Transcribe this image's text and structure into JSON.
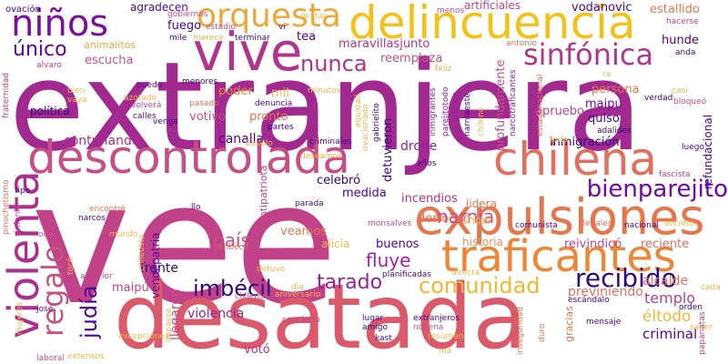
{
  "words": [
    {
      "text": "vee",
      "color": "#c2428a"
    },
    {
      "text": "extranjera",
      "color": "#a2298f"
    },
    {
      "text": "desatada",
      "color": "#da5a6b"
    },
    {
      "text": "delincuencia",
      "color": "#f0c21a"
    },
    {
      "text": "vive",
      "color": "#b1358c"
    },
    {
      "text": "descontrolada",
      "color": "#c64f86"
    },
    {
      "text": "expulsiones",
      "color": "#e6774d"
    },
    {
      "text": "traficantes",
      "color": "#ee8638"
    },
    {
      "text": "chilena",
      "color": "#e36f5d"
    },
    {
      "text": "violenta",
      "color": "#ab2f8e"
    },
    {
      "text": "niños",
      "color": "#7a0fa0"
    },
    {
      "text": "orquesta",
      "color": "#eea838"
    },
    {
      "text": "sinfónica",
      "color": "#b1358c"
    },
    {
      "text": "regalo",
      "color": "#ca5280"
    },
    {
      "text": "recibido",
      "color": "#30087e"
    },
    {
      "text": "bienparejito",
      "color": "#7206a7"
    },
    {
      "text": "comunidad",
      "color": "#f0b830"
    },
    {
      "text": "imbécil",
      "color": "#30087e"
    },
    {
      "text": "judía",
      "color": "#4c0296"
    },
    {
      "text": "nunca",
      "color": "#b43386"
    },
    {
      "text": "único",
      "color": "#6004a4"
    },
    {
      "text": "tarado",
      "color": "#9a1fa0"
    },
    {
      "text": "fluye",
      "color": "#a71fa0"
    },
    {
      "text": "narnia",
      "color": "#c64f86"
    },
    {
      "text": "éltodo",
      "color": "#f2b838"
    },
    {
      "text": "templo",
      "color": "#be3f88"
    },
    {
      "text": "criminal",
      "color": "#5a049b"
    },
    {
      "text": "alcalde",
      "color": "#e36f5d"
    },
    {
      "text": "previniendo",
      "color": "#e36f5d"
    },
    {
      "text": "país",
      "color": "#c64f86"
    },
    {
      "text": "violencia",
      "color": "#9a1fa0"
    },
    {
      "text": "llegaron",
      "color": "#c64f86"
    },
    {
      "text": "votó",
      "color": "#b43386"
    },
    {
      "text": "frente",
      "color": "#30087e"
    },
    {
      "text": "maipú",
      "color": "#c2428a"
    },
    {
      "text": "reivindicó",
      "color": "#c2428a"
    },
    {
      "text": "reciente",
      "color": "#e36f5d"
    },
    {
      "text": "historia",
      "color": "#e39260"
    },
    {
      "text": "buenos",
      "color": "#4c0296"
    },
    {
      "text": "alicia",
      "color": "#f5b44a"
    },
    {
      "text": "veamos",
      "color": "#e6774d"
    },
    {
      "text": "vendepatria",
      "color": "#6004a4"
    },
    {
      "text": "show",
      "color": "#f5b44a"
    },
    {
      "text": "derrocar",
      "color": "#e36f5d"
    },
    {
      "text": "lidera",
      "color": "#e6774d"
    },
    {
      "text": "incendios",
      "color": "#b43386"
    },
    {
      "text": "drone",
      "color": "#9a1fa0"
    },
    {
      "text": "celebró",
      "color": "#30087e"
    },
    {
      "text": "medida",
      "color": "#4c0296"
    },
    {
      "text": "inmigración",
      "color": "#30087e"
    },
    {
      "text": "canalla",
      "color": "#4c0296"
    },
    {
      "text": "controlando",
      "color": "#ab2f8e"
    },
    {
      "text": "votivo",
      "color": "#c64f86"
    },
    {
      "text": "poder",
      "color": "#ee8638"
    },
    {
      "text": "política",
      "color": "#30087e"
    },
    {
      "text": "escucha",
      "color": "#c64f86"
    },
    {
      "text": "mil",
      "color": "#f5b44a"
    },
    {
      "text": "pronto",
      "color": "#e6774d"
    },
    {
      "text": "detuvieron",
      "color": "#30087e"
    },
    {
      "text": "persona",
      "color": "#e6774d"
    },
    {
      "text": "apruebo",
      "color": "#c2428a"
    },
    {
      "text": "maipu",
      "color": "#7206a7"
    },
    {
      "text": "quiso",
      "color": "#4c0296"
    },
    {
      "text": "hunde",
      "color": "#4c0296"
    },
    {
      "text": "profundamente",
      "color": "#c64f86"
    },
    {
      "text": "maravillasjunto",
      "color": "#b43386"
    },
    {
      "text": "reemplaza",
      "color": "#c64f86"
    },
    {
      "text": "fuego",
      "color": "#4c0296"
    },
    {
      "text": "agradecen",
      "color": "#6004a4"
    },
    {
      "text": "artificiales",
      "color": "#c2428a"
    },
    {
      "text": "vodanovic",
      "color": "#4c0296"
    },
    {
      "text": "estallido",
      "color": "#e6774d"
    },
    {
      "text": "ovación",
      "color": "#4c0296"
    },
    {
      "text": "tea",
      "color": "#4c0296"
    },
    {
      "text": "refundacional",
      "color": "#4c0296"
    },
    {
      "text": "animalitos",
      "color": "#eea838"
    },
    {
      "text": "gabrielito",
      "color": "#4c0296"
    },
    {
      "text": "víctima",
      "color": "#9a1fa0"
    },
    {
      "text": "narcotraficantes",
      "color": "#9a1fa0"
    },
    {
      "text": "equidad",
      "color": "#f5b44a"
    },
    {
      "text": "estadonacional",
      "color": "#e36f5d"
    },
    {
      "text": "parejitotodo",
      "color": "#9a1fa0"
    },
    {
      "text": "inmigrantes",
      "color": "#9a1fa0"
    },
    {
      "text": "narniaeste",
      "color": "#4c0296"
    },
    {
      "text": "ovacionado",
      "color": "#f5b44a"
    },
    {
      "text": "chileno",
      "color": "#f5b44a"
    },
    {
      "text": "feliz",
      "color": "#f5b44a"
    },
    {
      "text": "antonio",
      "color": "#e36f5d"
    },
    {
      "text": "hacerse",
      "color": "#c2428a"
    },
    {
      "text": "bloqueó",
      "color": "#c64f86"
    },
    {
      "text": "anda",
      "color": "#30087e"
    },
    {
      "text": "casi",
      "color": "#f5b44a"
    },
    {
      "text": "verdad",
      "color": "#30087e"
    },
    {
      "text": "adalides",
      "color": "#30087e"
    },
    {
      "text": "luego",
      "color": "#4c0296"
    },
    {
      "text": "fascista",
      "color": "#c2428a"
    },
    {
      "text": "nacional",
      "color": "#4c0296"
    },
    {
      "text": "secreto",
      "color": "#f5b44a"
    },
    {
      "text": "ilegales",
      "color": "#e36f5d"
    },
    {
      "text": "comunista",
      "color": "#4c0296"
    },
    {
      "text": "monsalves",
      "color": "#c64f86"
    },
    {
      "text": "años",
      "color": "#4c0296"
    },
    {
      "text": "criminales",
      "color": "#4c0296"
    },
    {
      "text": "partes",
      "color": "#4c0296"
    },
    {
      "text": "denuncia",
      "color": "#4c0296"
    },
    {
      "text": "minutos",
      "color": "#f5b44a"
    },
    {
      "text": "menores",
      "color": "#30087e"
    },
    {
      "text": "puedo",
      "color": "#6004a4"
    },
    {
      "text": "azotado",
      "color": "#f5b44a"
    },
    {
      "text": "volverá",
      "color": "#c2428a"
    },
    {
      "text": "calles",
      "color": "#6004a4"
    },
    {
      "text": "pasado",
      "color": "#e36f5d"
    },
    {
      "text": "venga",
      "color": "#4c0296"
    },
    {
      "text": "bien",
      "color": "#f5b44a"
    },
    {
      "text": "vaya",
      "color": "#f5b44a"
    },
    {
      "text": "alvaro",
      "color": "#c2428a"
    },
    {
      "text": "fraternidad",
      "color": "#c2428a"
    },
    {
      "text": "encontré",
      "color": "#e6774d"
    },
    {
      "text": "narcos",
      "color": "#4c0296"
    },
    {
      "text": "tipo",
      "color": "#4c0296"
    },
    {
      "text": "pinochetismo",
      "color": "#e36f5d"
    },
    {
      "text": "sinfonía",
      "color": "#c2428a"
    },
    {
      "text": "oda",
      "color": "#c64f86"
    },
    {
      "text": "josé",
      "color": "#6004a4"
    },
    {
      "text": "mujeres",
      "color": "#f5b44a"
    },
    {
      "text": "laboral",
      "color": "#c64f86"
    },
    {
      "text": "extensos",
      "color": "#f5b44a"
    },
    {
      "text": "excepciones",
      "color": "#f5b44a"
    },
    {
      "text": "impasse",
      "color": "#f5b44a"
    },
    {
      "text": "chilenos",
      "color": "#c64f86"
    },
    {
      "text": "aniversario",
      "color": "#f5b44a"
    },
    {
      "text": "concierto",
      "color": "#c2428a"
    },
    {
      "text": "lugar",
      "color": "#4c0296"
    },
    {
      "text": "amigo",
      "color": "#30087e"
    },
    {
      "text": "kast",
      "color": "#4c0296"
    },
    {
      "text": "resumen",
      "color": "#f5b44a"
    },
    {
      "text": "ma",
      "color": "#f5b44a"
    },
    {
      "text": "extranjeros",
      "color": "#4c0296"
    },
    {
      "text": "novena",
      "color": "#c64f86"
    },
    {
      "text": "inseguridad",
      "color": "#e6774d"
    },
    {
      "text": "duro",
      "color": "#e6774d"
    },
    {
      "text": "gracias",
      "color": "#e6774d"
    },
    {
      "text": "mensaje",
      "color": "#4c0296"
    },
    {
      "text": "orden",
      "color": "#4c0296"
    },
    {
      "text": "saber",
      "color": "#f5b44a"
    },
    {
      "text": "papanatas",
      "color": "#c2428a"
    },
    {
      "text": "cada",
      "color": "#f5b44a"
    },
    {
      "text": "escándalo",
      "color": "#4c0296"
    },
    {
      "text": "planificadas",
      "color": "#4c0296"
    },
    {
      "text": "directa",
      "color": "#f5b44a"
    },
    {
      "text": "anterior",
      "color": "#c2428a"
    },
    {
      "text": "tocó",
      "color": "#f5b44a"
    },
    {
      "text": "mundo",
      "color": "#f5b44a"
    },
    {
      "text": "dia",
      "color": "#f5b44a"
    },
    {
      "text": "detuvo",
      "color": "#f5b44a"
    },
    {
      "text": "imbécil",
      "color": "#e36f5d"
    },
    {
      "text": "antipatriota",
      "color": "#c2428a"
    },
    {
      "text": "parada",
      "color": "#4c0296"
    },
    {
      "text": "llo",
      "color": "#4c0296"
    },
    {
      "text": "deseamos",
      "color": "#f5b44a"
    },
    {
      "text": "chileosta",
      "color": "#f5b44a"
    },
    {
      "text": "bellolo",
      "color": "#f5b44a"
    },
    {
      "text": "toda",
      "color": "#f5b44a"
    },
    {
      "text": "gobiernos",
      "color": "#c64f86"
    },
    {
      "text": "militar",
      "color": "#f5b44a"
    },
    {
      "text": "estadio",
      "color": "#c64f86"
    },
    {
      "text": "vi",
      "color": "#4c0296"
    },
    {
      "text": "terminar",
      "color": "#4c0296"
    },
    {
      "text": "mile",
      "color": "#4c0296"
    },
    {
      "text": "merece",
      "color": "#f5b44a"
    },
    {
      "text": "menos",
      "color": "#c64f86"
    },
    {
      "text": "ra",
      "color": "#f5b44a"
    }
  ]
}
